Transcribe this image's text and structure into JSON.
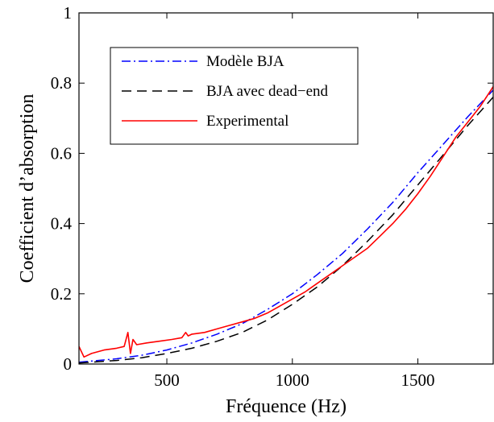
{
  "chart_data": {
    "type": "line",
    "xlabel": "Fréquence (Hz)",
    "ylabel": "Coefficient d’absorption",
    "xlim": [
      150,
      1800
    ],
    "ylim": [
      0,
      1
    ],
    "xticks": [
      500,
      1000,
      1500
    ],
    "yticks": [
      0,
      0.2,
      0.4,
      0.6,
      0.8,
      1
    ],
    "ytick_labels": [
      "0",
      "0.2",
      "0.4",
      "0.6",
      "0.8",
      "1"
    ],
    "grid": false,
    "legend_position": "top-left",
    "series": [
      {
        "name": "Modèle BJA",
        "color": "#0000ff",
        "style": "dash-dot",
        "x": [
          150,
          300,
          400,
          500,
          600,
          700,
          800,
          900,
          1000,
          1100,
          1200,
          1300,
          1400,
          1500,
          1600,
          1700,
          1800
        ],
        "y": [
          0.005,
          0.015,
          0.025,
          0.04,
          0.06,
          0.085,
          0.115,
          0.155,
          0.2,
          0.255,
          0.315,
          0.385,
          0.46,
          0.545,
          0.625,
          0.705,
          0.78
        ]
      },
      {
        "name": "BJA avec dead−end",
        "color": "#000000",
        "style": "dashed",
        "x": [
          150,
          300,
          400,
          500,
          600,
          700,
          800,
          900,
          1000,
          1100,
          1200,
          1300,
          1400,
          1500,
          1600,
          1700,
          1800
        ],
        "y": [
          0.003,
          0.01,
          0.018,
          0.03,
          0.045,
          0.065,
          0.09,
          0.125,
          0.17,
          0.22,
          0.28,
          0.35,
          0.425,
          0.51,
          0.595,
          0.68,
          0.76
        ]
      },
      {
        "name": "Experimental",
        "color": "#ff0000",
        "style": "solid",
        "x": [
          150,
          170,
          200,
          250,
          300,
          330,
          345,
          355,
          365,
          380,
          420,
          470,
          520,
          560,
          575,
          585,
          600,
          650,
          700,
          750,
          800,
          850,
          900,
          950,
          1000,
          1050,
          1100,
          1150,
          1200,
          1250,
          1300,
          1350,
          1400,
          1450,
          1500,
          1550,
          1600,
          1650,
          1700,
          1750,
          1800
        ],
        "y": [
          0.05,
          0.02,
          0.03,
          0.04,
          0.045,
          0.05,
          0.09,
          0.03,
          0.07,
          0.055,
          0.06,
          0.065,
          0.07,
          0.075,
          0.09,
          0.08,
          0.085,
          0.09,
          0.1,
          0.11,
          0.12,
          0.13,
          0.145,
          0.165,
          0.185,
          0.205,
          0.23,
          0.255,
          0.28,
          0.305,
          0.33,
          0.365,
          0.4,
          0.44,
          0.485,
          0.535,
          0.59,
          0.645,
          0.69,
          0.735,
          0.79
        ]
      }
    ]
  }
}
